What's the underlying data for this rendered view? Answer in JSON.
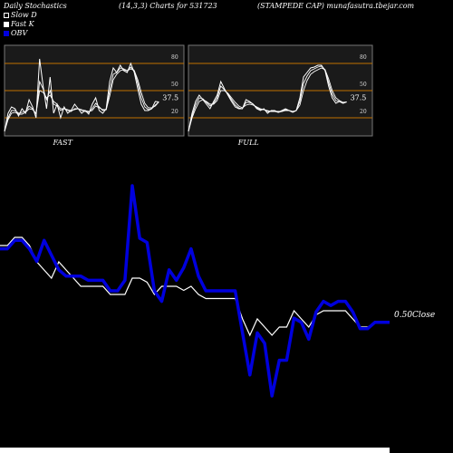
{
  "header": {
    "left": "Daily Stochastics",
    "center": "(14,3,3) Charts for 531723",
    "right": "(STAMPEDE CAP) munafasutra.tbejar.com"
  },
  "legend": [
    {
      "label": "Slow  D",
      "color": "#ffffff",
      "filled": false
    },
    {
      "label": "Fast K",
      "color": "#ffffff",
      "filled": true
    },
    {
      "label": "OBV",
      "color": "#0000dd",
      "filled": true
    }
  ],
  "chart_data": [
    {
      "type": "line",
      "panel_label": "FAST",
      "ylim": [
        0,
        100
      ],
      "levels": [
        20,
        50,
        80
      ],
      "tick_labels": [
        "80",
        "50",
        "20"
      ],
      "last_value_label": "37.5",
      "series": [
        {
          "values": [
            5,
            25,
            32,
            30,
            22,
            30,
            25,
            40,
            32,
            20,
            85,
            55,
            30,
            65,
            25,
            35,
            20,
            32,
            25,
            28,
            35,
            30,
            25,
            28,
            24,
            35,
            42,
            28,
            25,
            30,
            60,
            75,
            70,
            78,
            72,
            70,
            80,
            70,
            52,
            35,
            28,
            28,
            30,
            38,
            37.5
          ]
        },
        {
          "values": [
            5,
            20,
            28,
            28,
            25,
            26,
            27,
            33,
            30,
            24,
            60,
            52,
            40,
            50,
            35,
            33,
            28,
            30,
            28,
            27,
            30,
            30,
            28,
            27,
            26,
            30,
            36,
            32,
            28,
            29,
            50,
            68,
            70,
            75,
            74,
            72,
            76,
            72,
            58,
            42,
            32,
            29,
            30,
            34,
            37.5
          ]
        },
        {
          "values": [
            5,
            18,
            25,
            26,
            24,
            24,
            26,
            30,
            29,
            25,
            50,
            48,
            42,
            45,
            38,
            35,
            30,
            30,
            29,
            28,
            29,
            30,
            29,
            28,
            27,
            28,
            33,
            31,
            29,
            29,
            44,
            62,
            68,
            72,
            73,
            72,
            74,
            72,
            62,
            48,
            36,
            31,
            31,
            33,
            37.5
          ]
        }
      ]
    },
    {
      "type": "line",
      "panel_label": "FULL",
      "ylim": [
        0,
        100
      ],
      "levels": [
        20,
        50,
        80
      ],
      "tick_labels": [
        "80",
        "50",
        "20"
      ],
      "last_value_label": "37.5",
      "series": [
        {
          "values": [
            5,
            25,
            38,
            45,
            40,
            35,
            30,
            38,
            45,
            60,
            52,
            45,
            38,
            32,
            30,
            30,
            40,
            38,
            35,
            30,
            28,
            30,
            25,
            28,
            28,
            26,
            28,
            30,
            28,
            26,
            28,
            42,
            65,
            70,
            75,
            76,
            78,
            78,
            72,
            55,
            42,
            36,
            38,
            36,
            37.5
          ]
        },
        {
          "values": [
            5,
            22,
            34,
            42,
            41,
            37,
            33,
            36,
            42,
            55,
            51,
            46,
            40,
            34,
            31,
            30,
            37,
            37,
            35,
            31,
            29,
            29,
            27,
            27,
            27,
            26,
            27,
            29,
            28,
            27,
            28,
            38,
            58,
            66,
            72,
            74,
            76,
            77,
            73,
            59,
            46,
            39,
            38,
            36,
            37.5
          ]
        },
        {
          "values": [
            5,
            20,
            30,
            38,
            40,
            38,
            35,
            35,
            39,
            50,
            50,
            47,
            42,
            37,
            33,
            31,
            34,
            35,
            34,
            32,
            30,
            29,
            28,
            27,
            27,
            27,
            27,
            28,
            28,
            27,
            28,
            34,
            50,
            61,
            68,
            71,
            73,
            75,
            73,
            63,
            50,
            42,
            39,
            37,
            37.5
          ]
        }
      ]
    },
    {
      "type": "line",
      "annotation": "0.50Close",
      "series": [
        {
          "name": "OBV",
          "color": "#0000dd",
          "values": [
            3.5,
            3.5,
            3.9,
            3.9,
            3.5,
            2.9,
            3.9,
            3.2,
            2.5,
            2.2,
            2.2,
            2.2,
            2.0,
            2.0,
            2.0,
            1.5,
            1.5,
            2.0,
            6.5,
            4.0,
            3.8,
            1.5,
            1.0,
            2.5,
            2.0,
            2.6,
            3.5,
            2.2,
            1.5,
            1.5,
            1.5,
            1.5,
            1.5,
            -0.5,
            -2.5,
            -0.5,
            -1.0,
            -3.5,
            -1.8,
            -1.8,
            0.2,
            0.0,
            -0.8,
            0.5,
            1.0,
            0.8,
            1.0,
            1.0,
            0.5,
            -0.3,
            -0.3,
            0.0,
            0.0,
            0.0
          ]
        },
        {
          "name": "Close",
          "color": "#ffffff",
          "values": [
            0.62,
            0.62,
            0.63,
            0.63,
            0.62,
            0.6,
            0.59,
            0.58,
            0.6,
            0.59,
            0.58,
            0.57,
            0.57,
            0.57,
            0.57,
            0.56,
            0.56,
            0.56,
            0.58,
            0.58,
            0.575,
            0.56,
            0.57,
            0.57,
            0.57,
            0.565,
            0.57,
            0.56,
            0.555,
            0.555,
            0.555,
            0.555,
            0.555,
            0.53,
            0.51,
            0.53,
            0.52,
            0.51,
            0.52,
            0.52,
            0.54,
            0.53,
            0.52,
            0.535,
            0.54,
            0.54,
            0.54,
            0.54,
            0.53,
            0.52,
            0.52,
            0.525,
            0.525,
            0.525
          ]
        }
      ]
    }
  ]
}
